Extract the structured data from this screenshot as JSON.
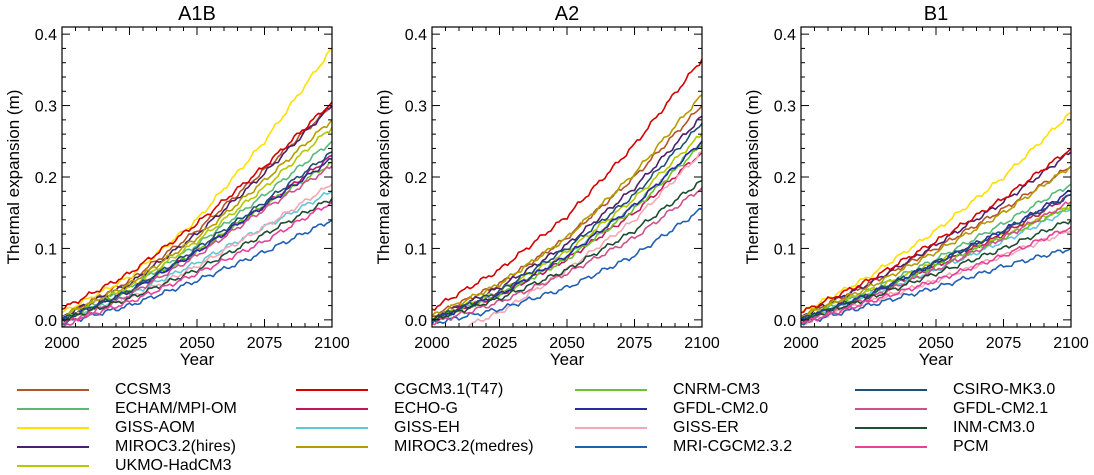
{
  "chart_data": [
    {
      "type": "line",
      "title": "A1B",
      "xlabel": "Year",
      "ylabel": "Thermal expansion (m)",
      "xlim": [
        2000,
        2100
      ],
      "ylim": [
        -0.01,
        0.41
      ],
      "xticks": [
        "2000",
        "2025",
        "2050",
        "2075",
        "2100"
      ],
      "yticks": [
        "0.0",
        "0.1",
        "0.2",
        "0.3",
        "0.4"
      ],
      "grid": false,
      "series": [
        {
          "name": "CCSM3",
          "color": "#b5532a",
          "x": [
            2000,
            2025,
            2050,
            2075,
            2100
          ],
          "values": [
            0.005,
            0.055,
            0.125,
            0.21,
            0.3
          ]
        },
        {
          "name": "ECHAM/MPI-OM",
          "color": "#5cb87a",
          "x": [
            2000,
            2025,
            2050,
            2075,
            2100
          ],
          "values": [
            0.0,
            0.045,
            0.105,
            0.175,
            0.25
          ]
        },
        {
          "name": "GISS-AOM",
          "color": "#ffe000",
          "x": [
            2000,
            2025,
            2050,
            2075,
            2100
          ],
          "values": [
            0.01,
            0.06,
            0.14,
            0.25,
            0.38
          ]
        },
        {
          "name": "MIROC3.2(hires)",
          "color": "#4a1f6b",
          "x": [
            2000,
            2025,
            2050,
            2075,
            2100
          ],
          "values": [
            0.005,
            0.05,
            0.12,
            0.205,
            0.3
          ]
        },
        {
          "name": "UKMO-HadCM3",
          "color": "#b4c800",
          "x": [
            2000,
            2025,
            2050,
            2075,
            2100
          ],
          "values": [
            0.005,
            0.045,
            0.11,
            0.185,
            0.27
          ]
        },
        {
          "name": "CGCM3.1(T47)",
          "color": "#d40000",
          "x": [
            2000,
            2025,
            2050,
            2075,
            2100
          ],
          "values": [
            0.015,
            0.065,
            0.135,
            0.215,
            0.305
          ]
        },
        {
          "name": "ECHO-G",
          "color": "#c2185b",
          "x": [
            2000,
            2025,
            2050,
            2075,
            2100
          ],
          "values": [
            0.0,
            0.04,
            0.095,
            0.16,
            0.23
          ]
        },
        {
          "name": "GISS-EH",
          "color": "#5ec8d8",
          "x": [
            2000,
            2025,
            2050,
            2075,
            2100
          ],
          "values": [
            0.0,
            0.035,
            0.08,
            0.13,
            0.18
          ]
        },
        {
          "name": "MIROC3.2(medres)",
          "color": "#b49b00",
          "x": [
            2000,
            2025,
            2050,
            2075,
            2100
          ],
          "values": [
            0.005,
            0.05,
            0.115,
            0.195,
            0.28
          ]
        },
        {
          "name": "CNRM-CM3",
          "color": "#6cc22a",
          "x": [
            2000,
            2025,
            2050,
            2075,
            2100
          ],
          "values": [
            0.0,
            0.04,
            0.095,
            0.16,
            0.22
          ]
        },
        {
          "name": "GFDL-CM2.0",
          "color": "#2a2aa0",
          "x": [
            2000,
            2025,
            2050,
            2075,
            2100
          ],
          "values": [
            0.0,
            0.04,
            0.095,
            0.16,
            0.225
          ]
        },
        {
          "name": "GISS-ER",
          "color": "#f4a8b4",
          "x": [
            2000,
            2025,
            2050,
            2075,
            2100
          ],
          "values": [
            0.0,
            0.03,
            0.075,
            0.13,
            0.19
          ]
        },
        {
          "name": "MRI-CGCM2.3.2",
          "color": "#1f5fb4",
          "x": [
            2000,
            2025,
            2050,
            2075,
            2100
          ],
          "values": [
            -0.005,
            0.02,
            0.055,
            0.095,
            0.14
          ]
        },
        {
          "name": "CSIRO-MK3.0",
          "color": "#1f4e79",
          "x": [
            2000,
            2025,
            2050,
            2075,
            2100
          ],
          "values": [
            0.0,
            0.04,
            0.1,
            0.165,
            0.235
          ]
        },
        {
          "name": "GFDL-CM2.1",
          "color": "#d0508c",
          "x": [
            2000,
            2025,
            2050,
            2075,
            2100
          ],
          "values": [
            -0.01,
            0.035,
            0.09,
            0.155,
            0.215
          ]
        },
        {
          "name": "INM-CM3.0",
          "color": "#1b4d2e",
          "x": [
            2000,
            2025,
            2050,
            2075,
            2100
          ],
          "values": [
            0.0,
            0.03,
            0.07,
            0.12,
            0.17
          ]
        },
        {
          "name": "PCM",
          "color": "#e8409c",
          "x": [
            2000,
            2025,
            2050,
            2075,
            2100
          ],
          "values": [
            -0.005,
            0.025,
            0.065,
            0.11,
            0.165
          ]
        }
      ]
    },
    {
      "type": "line",
      "title": "A2",
      "xlabel": "Year",
      "ylabel": "Thermal expansion (m)",
      "xlim": [
        2000,
        2100
      ],
      "ylim": [
        -0.01,
        0.41
      ],
      "xticks": [
        "2000",
        "2025",
        "2050",
        "2075",
        "2100"
      ],
      "yticks": [
        "0.0",
        "0.1",
        "0.2",
        "0.3",
        "0.4"
      ],
      "grid": false,
      "series": [
        {
          "name": "CCSM3",
          "color": "#b5532a",
          "x": [
            2000,
            2025,
            2050,
            2075,
            2100
          ],
          "values": [
            0.005,
            0.05,
            0.115,
            0.2,
            0.3
          ]
        },
        {
          "name": "ECHAM/MPI-OM",
          "color": "#5cb87a",
          "x": [
            2000,
            2025,
            2050,
            2075,
            2100
          ],
          "values": [
            0.0,
            0.035,
            0.09,
            0.16,
            0.25
          ]
        },
        {
          "name": "MIROC3.2(hires)",
          "color": "#4a1f6b",
          "x": [
            2000,
            2025,
            2050,
            2075,
            2100
          ],
          "values": [
            0.0,
            0.045,
            0.105,
            0.185,
            0.285
          ]
        },
        {
          "name": "UKMO-HadCM3",
          "color": "#b4c800",
          "x": [
            2000,
            2025,
            2050,
            2075,
            2100
          ],
          "values": [
            0.0,
            0.04,
            0.095,
            0.17,
            0.26
          ]
        },
        {
          "name": "CGCM3.1(T47)",
          "color": "#d40000",
          "x": [
            2000,
            2025,
            2050,
            2075,
            2100
          ],
          "values": [
            0.015,
            0.07,
            0.145,
            0.245,
            0.365
          ]
        },
        {
          "name": "ECHO-G",
          "color": "#c2185b",
          "x": [
            2000,
            2025,
            2050,
            2075,
            2100
          ],
          "values": [
            0.0,
            0.035,
            0.085,
            0.15,
            0.235
          ]
        },
        {
          "name": "MIROC3.2(medres)",
          "color": "#b49b00",
          "x": [
            2000,
            2025,
            2050,
            2075,
            2100
          ],
          "values": [
            0.005,
            0.05,
            0.115,
            0.205,
            0.315
          ]
        },
        {
          "name": "CNRM-CM3",
          "color": "#6cc22a",
          "x": [
            2000,
            2025,
            2050,
            2075,
            2100
          ],
          "values": [
            0.0,
            0.035,
            0.085,
            0.155,
            0.245
          ]
        },
        {
          "name": "GFDL-CM2.0",
          "color": "#2a2aa0",
          "x": [
            2000,
            2025,
            2050,
            2075,
            2100
          ],
          "values": [
            0.0,
            0.035,
            0.09,
            0.16,
            0.25
          ]
        },
        {
          "name": "GISS-ER",
          "color": "#f4a8b4",
          "x": [
            2012,
            2025,
            2050,
            2075,
            2100
          ],
          "values": [
            -0.01,
            0.01,
            0.07,
            0.14,
            0.235
          ]
        },
        {
          "name": "MRI-CGCM2.3.2",
          "color": "#1f5fb4",
          "x": [
            2000,
            2025,
            2050,
            2075,
            2100
          ],
          "values": [
            -0.005,
            0.015,
            0.045,
            0.09,
            0.155
          ]
        },
        {
          "name": "CSIRO-MK3.0",
          "color": "#1f4e79",
          "x": [
            2000,
            2025,
            2050,
            2075,
            2100
          ],
          "values": [
            0.0,
            0.04,
            0.1,
            0.175,
            0.275
          ]
        },
        {
          "name": "GFDL-CM2.1",
          "color": "#d0508c",
          "x": [
            2000,
            2025,
            2050,
            2075,
            2100
          ],
          "values": [
            -0.005,
            0.025,
            0.065,
            0.115,
            0.185
          ]
        },
        {
          "name": "INM-CM3.0",
          "color": "#1b4d2e",
          "x": [
            2000,
            2025,
            2050,
            2075,
            2100
          ],
          "values": [
            0.0,
            0.03,
            0.07,
            0.125,
            0.195
          ]
        }
      ]
    },
    {
      "type": "line",
      "title": "B1",
      "xlabel": "Year",
      "ylabel": "Thermal expansion (m)",
      "xlim": [
        2000,
        2100
      ],
      "ylim": [
        -0.01,
        0.41
      ],
      "xticks": [
        "2000",
        "2025",
        "2050",
        "2075",
        "2100"
      ],
      "yticks": [
        "0.0",
        "0.1",
        "0.2",
        "0.3",
        "0.4"
      ],
      "grid": false,
      "series": [
        {
          "name": "CCSM3",
          "color": "#b5532a",
          "x": [
            2000,
            2025,
            2050,
            2075,
            2100
          ],
          "values": [
            0.005,
            0.05,
            0.1,
            0.155,
            0.215
          ]
        },
        {
          "name": "ECHAM/MPI-OM",
          "color": "#5cb87a",
          "x": [
            2000,
            2025,
            2050,
            2075,
            2100
          ],
          "values": [
            0.0,
            0.04,
            0.085,
            0.135,
            0.19
          ]
        },
        {
          "name": "GISS-AOM",
          "color": "#ffe000",
          "x": [
            2000,
            2025,
            2050,
            2075,
            2100
          ],
          "values": [
            0.01,
            0.06,
            0.125,
            0.2,
            0.29
          ]
        },
        {
          "name": "MIROC3.2(hires)",
          "color": "#4a1f6b",
          "x": [
            2000,
            2025,
            2050,
            2075,
            2100
          ],
          "values": [
            0.005,
            0.05,
            0.105,
            0.165,
            0.235
          ]
        },
        {
          "name": "UKMO-HadCM3",
          "color": "#b4c800",
          "x": [
            2000,
            2025,
            2050,
            2075,
            2100
          ],
          "values": [
            0.005,
            0.04,
            0.08,
            0.12,
            0.16
          ]
        },
        {
          "name": "CGCM3.1(T47)",
          "color": "#d40000",
          "x": [
            2000,
            2025,
            2050,
            2075,
            2100
          ],
          "values": [
            0.01,
            0.055,
            0.11,
            0.17,
            0.24
          ]
        },
        {
          "name": "ECHO-G",
          "color": "#c2185b",
          "x": [
            2000,
            2025,
            2050,
            2075,
            2100
          ],
          "values": [
            0.0,
            0.035,
            0.075,
            0.12,
            0.175
          ]
        },
        {
          "name": "GISS-EH",
          "color": "#5ec8d8",
          "x": [
            2000,
            2025,
            2050,
            2075,
            2100
          ],
          "values": [
            0.0,
            0.035,
            0.07,
            0.11,
            0.155
          ]
        },
        {
          "name": "MIROC3.2(medres)",
          "color": "#b49b00",
          "x": [
            2000,
            2025,
            2050,
            2075,
            2100
          ],
          "values": [
            0.005,
            0.045,
            0.095,
            0.15,
            0.215
          ]
        },
        {
          "name": "CNRM-CM3",
          "color": "#6cc22a",
          "x": [
            2000,
            2025,
            2050,
            2075,
            2100
          ],
          "values": [
            0.0,
            0.035,
            0.075,
            0.115,
            0.16
          ]
        },
        {
          "name": "GFDL-CM2.0",
          "color": "#2a2aa0",
          "x": [
            2000,
            2025,
            2050,
            2075,
            2100
          ],
          "values": [
            0.0,
            0.035,
            0.08,
            0.125,
            0.18
          ]
        },
        {
          "name": "GISS-ER",
          "color": "#f4a8b4",
          "x": [
            2000,
            2025,
            2050,
            2075,
            2100
          ],
          "values": [
            -0.005,
            0.025,
            0.055,
            0.09,
            0.125
          ]
        },
        {
          "name": "MRI-CGCM2.3.2",
          "color": "#1f5fb4",
          "x": [
            2000,
            2025,
            2050,
            2075,
            2100
          ],
          "values": [
            -0.005,
            0.02,
            0.045,
            0.075,
            0.1
          ]
        },
        {
          "name": "CSIRO-MK3.0",
          "color": "#1f4e79",
          "x": [
            2000,
            2025,
            2050,
            2075,
            2100
          ],
          "values": [
            0.0,
            0.035,
            0.08,
            0.125,
            0.175
          ]
        },
        {
          "name": "GFDL-CM2.1",
          "color": "#d0508c",
          "x": [
            2000,
            2025,
            2050,
            2075,
            2100
          ],
          "values": [
            -0.005,
            0.03,
            0.07,
            0.115,
            0.165
          ]
        },
        {
          "name": "INM-CM3.0",
          "color": "#1b4d2e",
          "x": [
            2000,
            2025,
            2050,
            2075,
            2100
          ],
          "values": [
            0.0,
            0.03,
            0.065,
            0.1,
            0.14
          ]
        },
        {
          "name": "PCM",
          "color": "#e8409c",
          "x": [
            2000,
            2025,
            2050,
            2075,
            2100
          ],
          "values": [
            -0.005,
            0.025,
            0.055,
            0.09,
            0.13
          ]
        }
      ]
    }
  ],
  "legend": {
    "columns": [
      [
        {
          "label": "CCSM3",
          "color": "#b5532a"
        },
        {
          "label": "ECHAM/MPI-OM",
          "color": "#5cb87a"
        },
        {
          "label": "GISS-AOM",
          "color": "#ffe000"
        },
        {
          "label": "MIROC3.2(hires)",
          "color": "#4a1f6b"
        },
        {
          "label": "UKMO-HadCM3",
          "color": "#b4c800"
        }
      ],
      [
        {
          "label": "CGCM3.1(T47)",
          "color": "#d40000"
        },
        {
          "label": "ECHO-G",
          "color": "#c2185b"
        },
        {
          "label": "GISS-EH",
          "color": "#5ec8d8"
        },
        {
          "label": "MIROC3.2(medres)",
          "color": "#b49b00"
        }
      ],
      [
        {
          "label": "CNRM-CM3",
          "color": "#6cc22a"
        },
        {
          "label": "GFDL-CM2.0",
          "color": "#2a2aa0"
        },
        {
          "label": "GISS-ER",
          "color": "#f4a8b4"
        },
        {
          "label": "MRI-CGCM2.3.2",
          "color": "#1f5fb4"
        }
      ],
      [
        {
          "label": "CSIRO-MK3.0",
          "color": "#1f4e79"
        },
        {
          "label": "GFDL-CM2.1",
          "color": "#d0508c"
        },
        {
          "label": "INM-CM3.0",
          "color": "#1b4d2e"
        },
        {
          "label": "PCM",
          "color": "#e8409c"
        }
      ]
    ]
  }
}
